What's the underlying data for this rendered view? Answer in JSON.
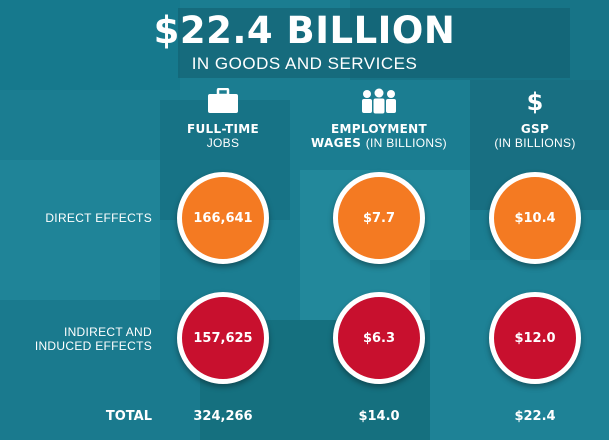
{
  "header": {
    "title": "$22.4 BILLION",
    "subtitle": "IN GOODS AND SERVICES"
  },
  "chart_data": {
    "type": "table",
    "columns": [
      {
        "title": "FULL-TIME",
        "subtitle": "JOBS",
        "icon": "briefcase-icon"
      },
      {
        "title": "EMPLOYMENT",
        "title_line2": "WAGES",
        "subtitle": "(IN BILLIONS)",
        "icon": "people-icon"
      },
      {
        "title": "GSP",
        "subtitle": "(IN BILLIONS)",
        "icon": "dollar-icon"
      }
    ],
    "rows": [
      {
        "label": "DIRECT EFFECTS",
        "values": [
          "166,641",
          "$7.7",
          "$10.4"
        ],
        "numeric": [
          166641,
          7.7,
          10.4
        ]
      },
      {
        "label_line1": "INDIRECT AND",
        "label_line2": "INDUCED EFFECTS",
        "values": [
          "157,625",
          "$6.3",
          "$12.0"
        ],
        "numeric": [
          157625,
          6.3,
          12.0
        ]
      }
    ],
    "total": {
      "label": "TOTAL",
      "values": [
        "324,266",
        "$14.0",
        "$22.4"
      ],
      "numeric": [
        324266,
        14.0,
        22.4
      ]
    }
  },
  "colors": {
    "background": "#1b7d91",
    "direct": "#f47a22",
    "indirect": "#c8102e",
    "ring": "#ffffff"
  }
}
